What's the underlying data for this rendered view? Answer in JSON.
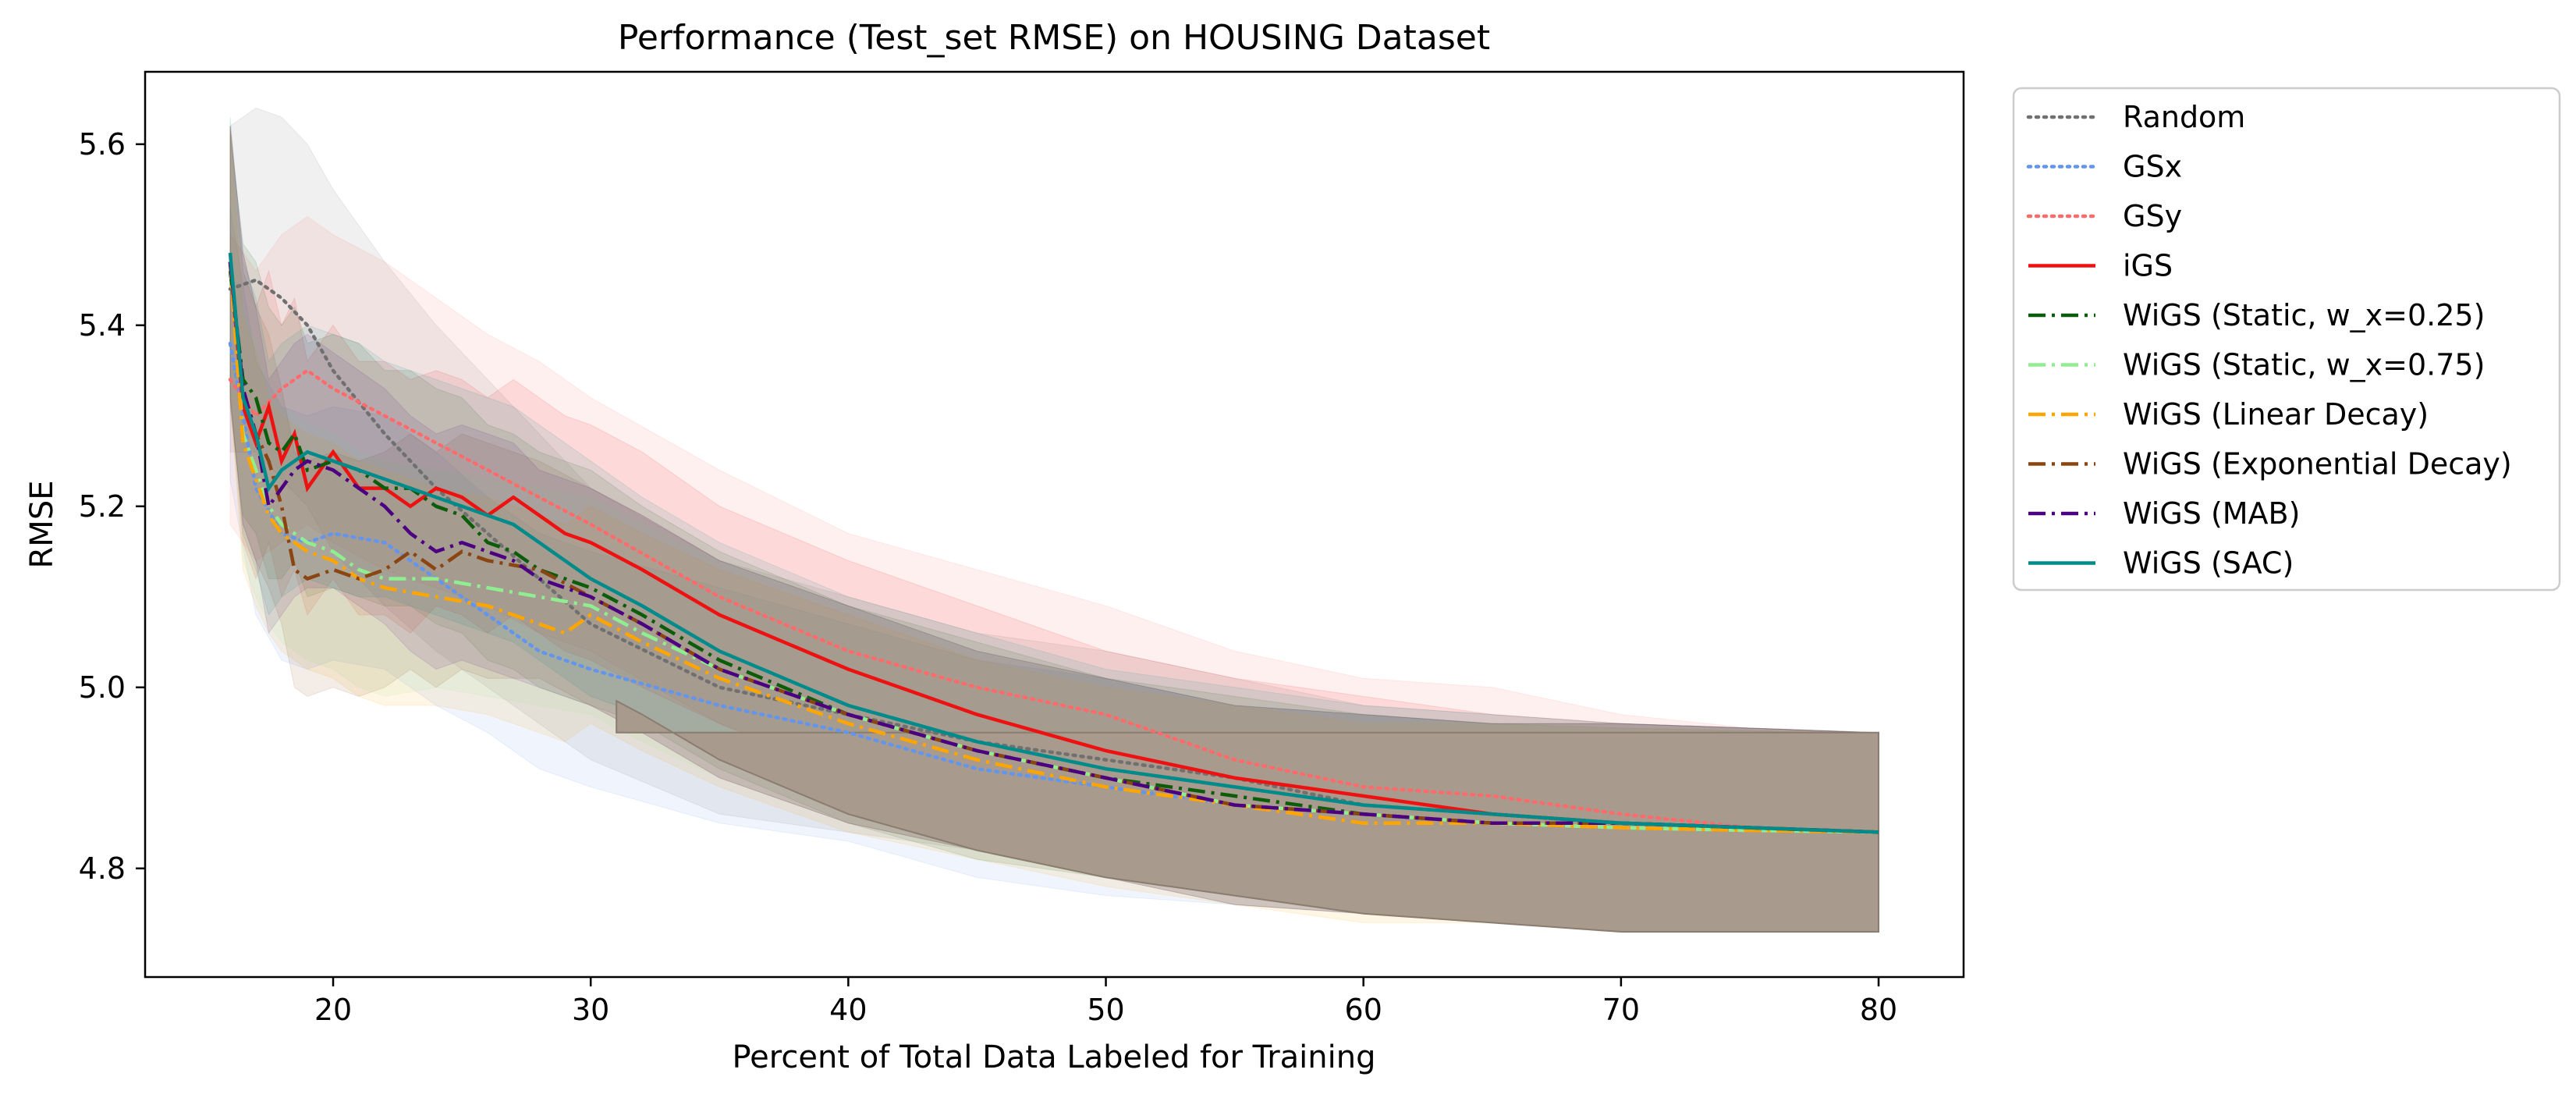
{
  "chart_data": {
    "type": "line",
    "title": "Performance (Test_set RMSE) on HOUSING Dataset",
    "xlabel": "Percent of Total Data Labeled for Training",
    "ylabel": "RMSE",
    "xlim": [
      12.7,
      83.3
    ],
    "ylim": [
      4.68,
      5.68
    ],
    "xticks": [
      20,
      30,
      40,
      50,
      60,
      70,
      80
    ],
    "yticks": [
      4.8,
      5.0,
      5.2,
      5.4,
      5.6
    ],
    "xtick_labels": [
      "20",
      "30",
      "40",
      "50",
      "60",
      "70",
      "80"
    ],
    "ytick_labels": [
      "4.8",
      "5.0",
      "5.2",
      "5.4",
      "5.6"
    ],
    "grid": false,
    "legend_position": "outside-right",
    "final_band": {
      "x": 80,
      "low": 4.73,
      "high": 4.95,
      "color": "#a89a8c"
    },
    "series": [
      {
        "name": "Random",
        "color": "#707070",
        "dash": "dotted",
        "x": [
          16,
          17,
          18,
          19,
          20,
          22,
          24,
          26,
          28,
          30,
          35,
          40,
          45,
          50,
          55,
          60,
          65,
          70,
          75,
          80
        ],
        "y": [
          5.44,
          5.45,
          5.43,
          5.4,
          5.35,
          5.28,
          5.22,
          5.17,
          5.12,
          5.07,
          5.0,
          4.97,
          4.94,
          4.92,
          4.9,
          4.87,
          4.86,
          4.85,
          4.845,
          4.84
        ],
        "band": [
          0.18,
          0.19,
          0.2,
          0.2,
          0.2,
          0.19,
          0.18,
          0.17,
          0.16,
          0.15,
          0.14,
          0.13,
          0.12,
          0.12,
          0.11,
          0.11,
          0.11,
          0.11,
          0.11,
          0.11
        ]
      },
      {
        "name": "GSx",
        "color": "#6495ed",
        "dash": "dotted",
        "x": [
          16,
          17,
          18,
          19,
          20,
          22,
          24,
          26,
          28,
          30,
          35,
          40,
          45,
          50,
          55,
          60,
          65,
          70,
          75,
          80
        ],
        "y": [
          5.38,
          5.22,
          5.17,
          5.16,
          5.17,
          5.16,
          5.12,
          5.08,
          5.04,
          5.02,
          4.98,
          4.95,
          4.91,
          4.89,
          4.87,
          4.86,
          4.85,
          4.845,
          4.842,
          4.84
        ],
        "band": [
          0.15,
          0.14,
          0.14,
          0.14,
          0.14,
          0.14,
          0.14,
          0.13,
          0.13,
          0.13,
          0.13,
          0.12,
          0.12,
          0.12,
          0.11,
          0.11,
          0.11,
          0.11,
          0.11,
          0.11
        ]
      },
      {
        "name": "GSy",
        "color": "#ff6b6b",
        "dash": "dotted",
        "x": [
          16,
          17,
          18,
          19,
          20,
          22,
          24,
          26,
          28,
          30,
          35,
          40,
          45,
          50,
          55,
          60,
          65,
          70,
          75,
          80
        ],
        "y": [
          5.34,
          5.3,
          5.33,
          5.35,
          5.33,
          5.3,
          5.27,
          5.24,
          5.21,
          5.18,
          5.1,
          5.04,
          5.0,
          4.97,
          4.92,
          4.89,
          4.88,
          4.86,
          4.845,
          4.84
        ],
        "band": [
          0.16,
          0.16,
          0.17,
          0.17,
          0.17,
          0.17,
          0.16,
          0.15,
          0.15,
          0.14,
          0.14,
          0.13,
          0.13,
          0.12,
          0.12,
          0.12,
          0.12,
          0.11,
          0.11,
          0.11
        ]
      },
      {
        "name": "iGS",
        "color": "#ee1111",
        "dash": "solid",
        "x": [
          16,
          16.5,
          17,
          17.5,
          18,
          18.5,
          19,
          20,
          21,
          22,
          23,
          24,
          25,
          26,
          27,
          28,
          29,
          30,
          32,
          35,
          40,
          45,
          50,
          55,
          60,
          65,
          70,
          75,
          80
        ],
        "y": [
          5.47,
          5.31,
          5.27,
          5.31,
          5.25,
          5.28,
          5.22,
          5.26,
          5.22,
          5.22,
          5.2,
          5.22,
          5.21,
          5.19,
          5.21,
          5.19,
          5.17,
          5.16,
          5.13,
          5.08,
          5.02,
          4.97,
          4.93,
          4.9,
          4.88,
          4.86,
          4.85,
          4.845,
          4.84
        ],
        "band": [
          0.15,
          0.15,
          0.15,
          0.15,
          0.15,
          0.15,
          0.14,
          0.14,
          0.14,
          0.14,
          0.14,
          0.13,
          0.13,
          0.13,
          0.13,
          0.13,
          0.13,
          0.13,
          0.13,
          0.12,
          0.12,
          0.12,
          0.11,
          0.11,
          0.11,
          0.11,
          0.11,
          0.11,
          0.11
        ]
      },
      {
        "name": "WiGS (Static, w_x=0.25)",
        "color": "#0b5c0b",
        "dash": "dashdot",
        "x": [
          16,
          16.5,
          17,
          17.5,
          18,
          18.5,
          19,
          20,
          21,
          22,
          23,
          24,
          25,
          26,
          27,
          28,
          30,
          32,
          35,
          40,
          45,
          50,
          55,
          60,
          65,
          70,
          75,
          80
        ],
        "y": [
          5.46,
          5.34,
          5.32,
          5.27,
          5.26,
          5.28,
          5.24,
          5.25,
          5.24,
          5.22,
          5.22,
          5.2,
          5.19,
          5.16,
          5.15,
          5.13,
          5.11,
          5.08,
          5.03,
          4.97,
          4.93,
          4.9,
          4.88,
          4.86,
          4.85,
          4.85,
          4.845,
          4.84
        ],
        "band": [
          0.15,
          0.15,
          0.15,
          0.15,
          0.14,
          0.14,
          0.14,
          0.14,
          0.14,
          0.13,
          0.13,
          0.13,
          0.13,
          0.13,
          0.13,
          0.13,
          0.13,
          0.12,
          0.12,
          0.12,
          0.12,
          0.11,
          0.11,
          0.11,
          0.11,
          0.11,
          0.11,
          0.11
        ]
      },
      {
        "name": "WiGS (Static, w_x=0.75)",
        "color": "#90ee90",
        "dash": "dashdot",
        "x": [
          16,
          16.5,
          17,
          17.5,
          18,
          19,
          20,
          21,
          22,
          24,
          26,
          28,
          30,
          32,
          35,
          40,
          45,
          50,
          55,
          60,
          65,
          70,
          75,
          80
        ],
        "y": [
          5.47,
          5.28,
          5.24,
          5.2,
          5.18,
          5.16,
          5.15,
          5.13,
          5.12,
          5.12,
          5.11,
          5.1,
          5.09,
          5.06,
          5.02,
          4.97,
          4.93,
          4.9,
          4.87,
          4.86,
          4.85,
          4.845,
          4.842,
          4.84
        ],
        "band": [
          0.15,
          0.14,
          0.14,
          0.13,
          0.13,
          0.13,
          0.13,
          0.13,
          0.13,
          0.12,
          0.12,
          0.12,
          0.12,
          0.12,
          0.12,
          0.12,
          0.11,
          0.11,
          0.11,
          0.11,
          0.11,
          0.11,
          0.11,
          0.11
        ]
      },
      {
        "name": "WiGS (Linear Decay)",
        "color": "#ffa500",
        "dash": "dashdot",
        "x": [
          16,
          16.5,
          17,
          17.5,
          18,
          19,
          20,
          21,
          22,
          24,
          26,
          28,
          29,
          30,
          32,
          35,
          40,
          45,
          50,
          55,
          60,
          65,
          70,
          75,
          80
        ],
        "y": [
          5.47,
          5.27,
          5.23,
          5.19,
          5.17,
          5.15,
          5.14,
          5.12,
          5.11,
          5.1,
          5.09,
          5.07,
          5.06,
          5.08,
          5.05,
          5.01,
          4.96,
          4.92,
          4.89,
          4.87,
          4.85,
          4.85,
          4.845,
          4.842,
          4.84
        ],
        "band": [
          0.15,
          0.14,
          0.14,
          0.13,
          0.13,
          0.13,
          0.13,
          0.13,
          0.13,
          0.12,
          0.12,
          0.12,
          0.12,
          0.12,
          0.12,
          0.12,
          0.12,
          0.11,
          0.11,
          0.11,
          0.11,
          0.11,
          0.11,
          0.11,
          0.11
        ]
      },
      {
        "name": "WiGS (Exponential Decay)",
        "color": "#8b4513",
        "dash": "dashdot",
        "x": [
          16,
          16.5,
          17,
          17.5,
          18,
          18.5,
          19,
          20,
          21,
          22,
          23,
          24,
          25,
          26,
          28,
          30,
          32,
          35,
          40,
          45,
          50,
          55,
          60,
          65,
          70,
          75,
          80
        ],
        "y": [
          5.47,
          5.33,
          5.28,
          5.25,
          5.2,
          5.13,
          5.12,
          5.13,
          5.12,
          5.13,
          5.15,
          5.13,
          5.15,
          5.14,
          5.13,
          5.1,
          5.07,
          5.02,
          4.97,
          4.93,
          4.9,
          4.87,
          4.86,
          4.85,
          4.85,
          4.845,
          4.84
        ],
        "band": [
          0.15,
          0.15,
          0.14,
          0.14,
          0.13,
          0.13,
          0.13,
          0.13,
          0.13,
          0.13,
          0.13,
          0.13,
          0.13,
          0.13,
          0.12,
          0.12,
          0.12,
          0.12,
          0.12,
          0.11,
          0.11,
          0.11,
          0.11,
          0.11,
          0.11,
          0.11,
          0.11
        ]
      },
      {
        "name": "WiGS (MAB)",
        "color": "#4b0082",
        "dash": "dashdot",
        "x": [
          16,
          16.5,
          17,
          17.5,
          18,
          18.5,
          19,
          20,
          21,
          22,
          23,
          24,
          25,
          26,
          27,
          28,
          30,
          32,
          35,
          40,
          45,
          50,
          55,
          60,
          65,
          70,
          75,
          80
        ],
        "y": [
          5.47,
          5.33,
          5.28,
          5.2,
          5.22,
          5.24,
          5.25,
          5.24,
          5.22,
          5.2,
          5.17,
          5.15,
          5.16,
          5.15,
          5.14,
          5.12,
          5.1,
          5.07,
          5.02,
          4.97,
          4.93,
          4.9,
          4.87,
          4.86,
          4.85,
          4.85,
          4.845,
          4.84
        ],
        "band": [
          0.15,
          0.15,
          0.14,
          0.14,
          0.14,
          0.14,
          0.14,
          0.13,
          0.13,
          0.13,
          0.13,
          0.13,
          0.13,
          0.13,
          0.13,
          0.12,
          0.12,
          0.12,
          0.12,
          0.12,
          0.11,
          0.11,
          0.11,
          0.11,
          0.11,
          0.11,
          0.11,
          0.11
        ]
      },
      {
        "name": "WiGS (SAC)",
        "color": "#008b8b",
        "dash": "solid",
        "x": [
          16,
          16.5,
          17,
          17.5,
          18,
          18.5,
          19,
          20,
          21,
          22,
          23,
          24,
          25,
          26,
          27,
          28,
          30,
          32,
          35,
          40,
          45,
          50,
          55,
          60,
          65,
          70,
          75,
          80
        ],
        "y": [
          5.48,
          5.32,
          5.28,
          5.22,
          5.24,
          5.25,
          5.26,
          5.25,
          5.24,
          5.23,
          5.22,
          5.21,
          5.2,
          5.19,
          5.18,
          5.16,
          5.12,
          5.09,
          5.04,
          4.98,
          4.94,
          4.91,
          4.89,
          4.87,
          4.86,
          4.85,
          4.845,
          4.84
        ],
        "band": [
          0.15,
          0.15,
          0.15,
          0.14,
          0.14,
          0.14,
          0.14,
          0.14,
          0.14,
          0.13,
          0.13,
          0.13,
          0.13,
          0.13,
          0.13,
          0.13,
          0.13,
          0.12,
          0.12,
          0.12,
          0.12,
          0.11,
          0.11,
          0.11,
          0.11,
          0.11,
          0.11,
          0.11
        ]
      }
    ]
  }
}
